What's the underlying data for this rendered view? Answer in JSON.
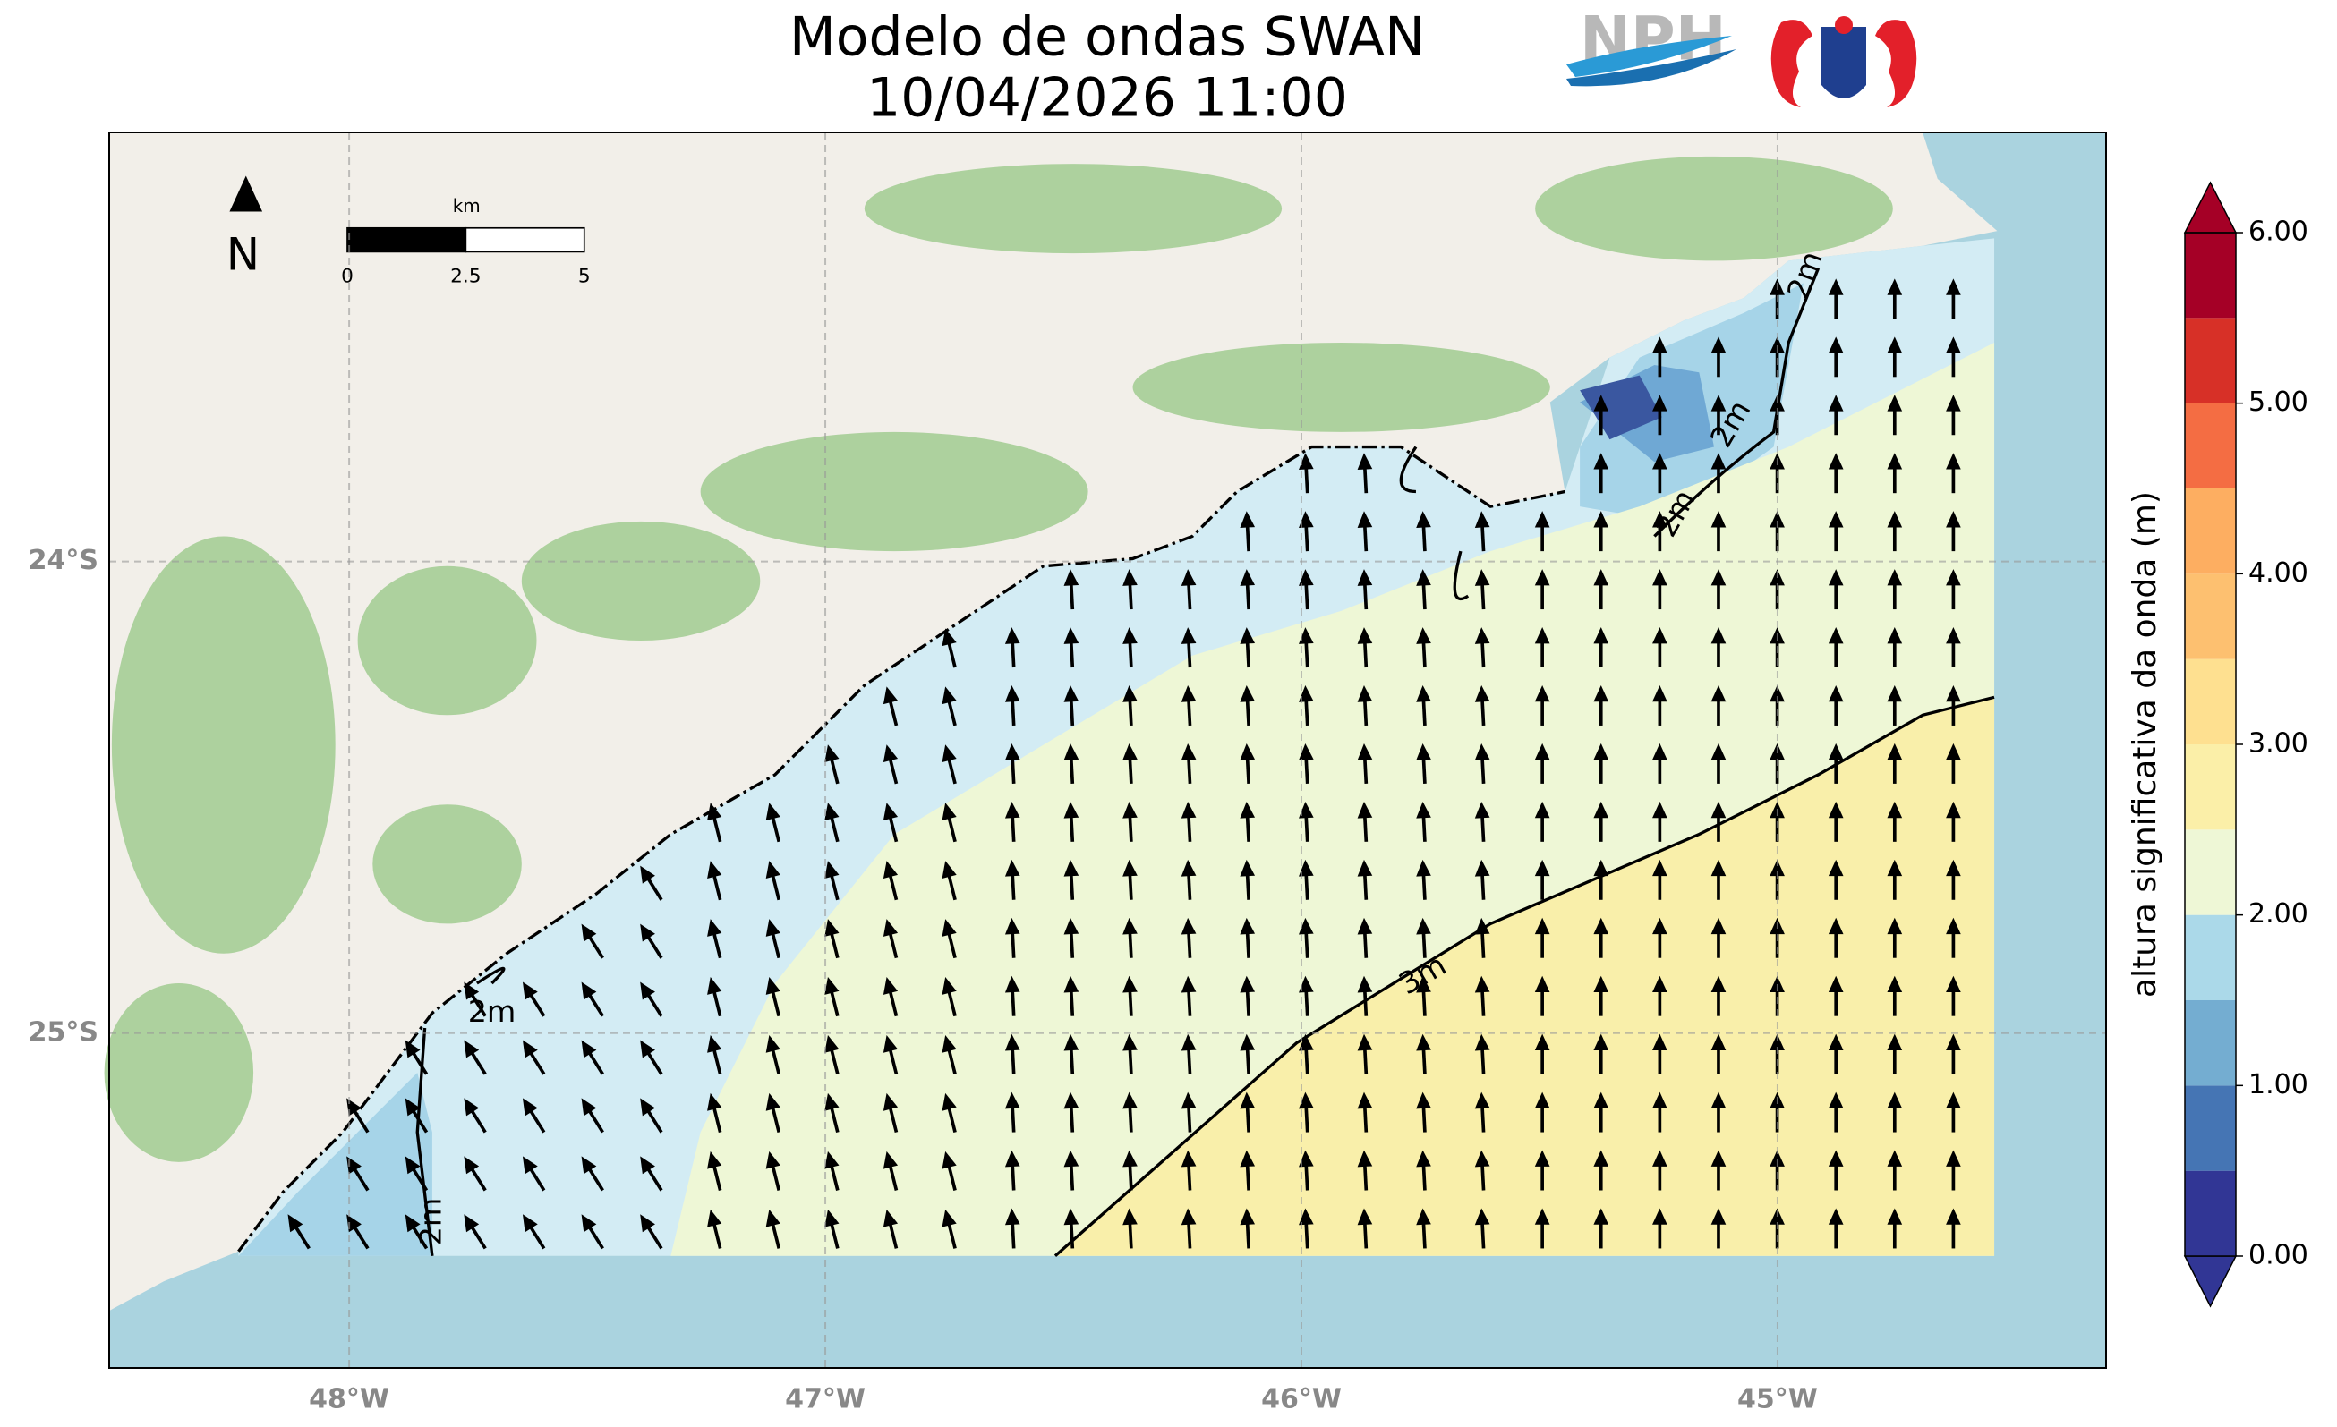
{
  "title": {
    "line1": "Modelo de ondas SWAN",
    "line2": "10/04/2026 11:00"
  },
  "logo": {
    "text": "NPH"
  },
  "map": {
    "xlim": [
      -48.504,
      -44.31
    ],
    "ylim": [
      -25.71,
      -23.09
    ],
    "xticks": [
      {
        "value": -48,
        "label": "48°W"
      },
      {
        "value": -47,
        "label": "47°W"
      },
      {
        "value": -46,
        "label": "46°W"
      },
      {
        "value": -45,
        "label": "45°W"
      }
    ],
    "yticks": [
      {
        "value": -24,
        "label": "24°S"
      },
      {
        "value": -25,
        "label": "25°S"
      }
    ],
    "grid": true,
    "north": "N",
    "scalebar": {
      "unit": "km",
      "ticks": [
        0,
        2.5,
        5
      ]
    },
    "contours": [
      {
        "label": "3m"
      },
      {
        "label": "2m"
      },
      {
        "label": "2m"
      },
      {
        "label": "2m"
      },
      {
        "label": "2m"
      },
      {
        "label": "2m"
      }
    ]
  },
  "colorbar": {
    "label": "altura significativa da onda (m)",
    "lim": [
      0,
      6
    ],
    "ticks": [
      {
        "value": 0,
        "label": "0.00"
      },
      {
        "value": 1,
        "label": "1.00"
      },
      {
        "value": 2,
        "label": "2.00"
      },
      {
        "value": 3,
        "label": "3.00"
      },
      {
        "value": 4,
        "label": "4.00"
      },
      {
        "value": 5,
        "label": "5.00"
      },
      {
        "value": 6,
        "label": "6.00"
      }
    ],
    "colors": [
      "#313695",
      "#4575b4",
      "#74add1",
      "#abd9e9",
      "#d3ecf4",
      "#eef7d6",
      "#fbefa8",
      "#fee090",
      "#fdc070",
      "#fdae61",
      "#f46d43",
      "#d73027",
      "#a50026"
    ]
  }
}
